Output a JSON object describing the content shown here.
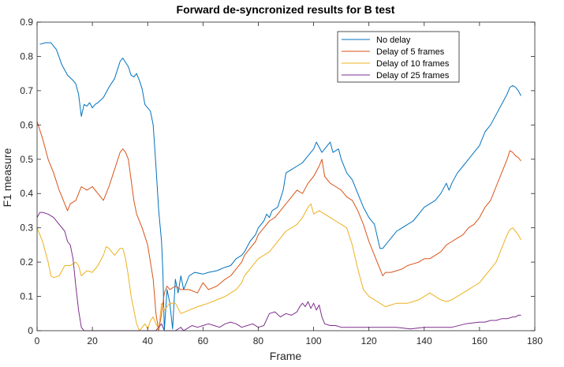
{
  "chart_data": {
    "type": "line",
    "title": "Forward de-syncronized results for B test",
    "xlabel": "Frame",
    "ylabel": "F1 measure",
    "xlim": [
      0,
      180
    ],
    "ylim": [
      0,
      0.9
    ],
    "xticks": [
      0,
      20,
      40,
      60,
      80,
      100,
      120,
      140,
      160,
      180
    ],
    "yticks": [
      0,
      0.1,
      0.2,
      0.3,
      0.4,
      0.5,
      0.6,
      0.7,
      0.8,
      0.9
    ],
    "xtick_labels": [
      "0",
      "20",
      "40",
      "60",
      "80",
      "100",
      "120",
      "140",
      "160",
      "180"
    ],
    "ytick_labels": [
      "0",
      "0.1",
      "0.2",
      "0.3",
      "0.4",
      "0.5",
      "0.6",
      "0.7",
      "0.8",
      "0.9"
    ],
    "grid": false,
    "legend_position": "top-right",
    "series": [
      {
        "name": "No delay",
        "color": "#0072BD",
        "x": [
          1,
          3,
          5,
          7,
          9,
          11,
          13,
          14,
          15,
          16,
          17,
          18,
          19,
          20,
          21,
          22,
          24,
          26,
          28,
          30,
          31,
          33,
          34,
          35,
          36,
          37,
          38,
          39,
          40,
          41,
          42,
          43,
          44,
          45,
          45.5,
          46,
          47,
          48,
          49,
          50,
          51,
          52,
          53,
          55,
          57,
          60,
          62,
          65,
          68,
          70,
          72,
          74,
          75,
          77,
          79,
          80,
          82,
          83,
          84,
          85,
          87,
          89,
          90,
          92,
          94,
          96,
          98,
          100,
          101,
          103,
          104,
          106,
          107,
          109,
          110,
          112,
          114,
          116,
          118,
          120,
          122,
          124,
          125,
          126,
          127,
          128,
          129,
          130,
          132,
          134,
          136,
          138,
          140,
          142,
          144,
          146,
          148,
          149,
          150,
          152,
          154,
          156,
          158,
          160,
          162,
          164,
          166,
          168,
          170,
          171,
          172,
          173,
          174,
          175
        ],
        "y": [
          0.835,
          0.84,
          0.84,
          0.82,
          0.775,
          0.745,
          0.73,
          0.72,
          0.69,
          0.625,
          0.66,
          0.655,
          0.665,
          0.65,
          0.66,
          0.665,
          0.68,
          0.71,
          0.735,
          0.785,
          0.795,
          0.77,
          0.745,
          0.74,
          0.75,
          0.73,
          0.705,
          0.66,
          0.65,
          0.64,
          0.6,
          0.48,
          0.35,
          0.26,
          0.17,
          0.0,
          0.12,
          0.08,
          0.005,
          0.15,
          0.11,
          0.16,
          0.12,
          0.16,
          0.17,
          0.165,
          0.17,
          0.175,
          0.185,
          0.19,
          0.21,
          0.22,
          0.23,
          0.26,
          0.28,
          0.3,
          0.32,
          0.34,
          0.33,
          0.35,
          0.36,
          0.41,
          0.46,
          0.47,
          0.48,
          0.49,
          0.51,
          0.53,
          0.55,
          0.52,
          0.53,
          0.55,
          0.52,
          0.53,
          0.5,
          0.46,
          0.44,
          0.4,
          0.36,
          0.33,
          0.31,
          0.24,
          0.24,
          0.25,
          0.26,
          0.27,
          0.28,
          0.29,
          0.3,
          0.31,
          0.32,
          0.34,
          0.36,
          0.37,
          0.38,
          0.4,
          0.43,
          0.41,
          0.43,
          0.46,
          0.48,
          0.5,
          0.52,
          0.54,
          0.58,
          0.6,
          0.63,
          0.66,
          0.69,
          0.71,
          0.715,
          0.71,
          0.7,
          0.685
        ]
      },
      {
        "name": "Delay of 5 frames",
        "color": "#D95319",
        "x": [
          0,
          2,
          4,
          6,
          8,
          10,
          11,
          12,
          14,
          15,
          16,
          18,
          20,
          22,
          24,
          26,
          28,
          30,
          31,
          32,
          33,
          34,
          35,
          36,
          38,
          40,
          42,
          43,
          44,
          45,
          46,
          47,
          48,
          50,
          52,
          55,
          58,
          60,
          62,
          65,
          68,
          70,
          72,
          74,
          75,
          77,
          79,
          80,
          82,
          84,
          86,
          88,
          90,
          92,
          94,
          96,
          98,
          100,
          102,
          103,
          104,
          106,
          108,
          110,
          112,
          114,
          116,
          118,
          120,
          122,
          124,
          125,
          126,
          128,
          130,
          132,
          134,
          136,
          138,
          140,
          142,
          144,
          146,
          148,
          150,
          152,
          154,
          156,
          158,
          160,
          162,
          164,
          166,
          168,
          170,
          171,
          172,
          173,
          174,
          175
        ],
        "y": [
          0.61,
          0.56,
          0.5,
          0.46,
          0.41,
          0.37,
          0.35,
          0.37,
          0.38,
          0.4,
          0.42,
          0.41,
          0.42,
          0.4,
          0.38,
          0.42,
          0.47,
          0.52,
          0.53,
          0.52,
          0.5,
          0.44,
          0.38,
          0.34,
          0.3,
          0.25,
          0.15,
          0.05,
          0.0,
          0.05,
          0.11,
          0.13,
          0.12,
          0.13,
          0.12,
          0.12,
          0.11,
          0.14,
          0.12,
          0.13,
          0.15,
          0.16,
          0.18,
          0.2,
          0.22,
          0.24,
          0.26,
          0.28,
          0.3,
          0.32,
          0.33,
          0.35,
          0.37,
          0.39,
          0.41,
          0.4,
          0.43,
          0.45,
          0.48,
          0.5,
          0.45,
          0.43,
          0.42,
          0.41,
          0.39,
          0.38,
          0.35,
          0.31,
          0.26,
          0.22,
          0.18,
          0.16,
          0.17,
          0.17,
          0.175,
          0.18,
          0.19,
          0.195,
          0.2,
          0.21,
          0.21,
          0.22,
          0.23,
          0.25,
          0.26,
          0.27,
          0.28,
          0.3,
          0.31,
          0.33,
          0.36,
          0.38,
          0.42,
          0.46,
          0.5,
          0.525,
          0.52,
          0.51,
          0.505,
          0.495
        ]
      },
      {
        "name": "Delay of 10 frames",
        "color": "#EDB120",
        "x": [
          0,
          2,
          4,
          5,
          6,
          8,
          10,
          12,
          14,
          15,
          16,
          18,
          20,
          22,
          24,
          25,
          26,
          28,
          30,
          31,
          32,
          33,
          34,
          35,
          36,
          37,
          38,
          39,
          40,
          41,
          42,
          43,
          44,
          45,
          46,
          48,
          50,
          52,
          55,
          58,
          60,
          62,
          65,
          68,
          70,
          72,
          74,
          75,
          77,
          79,
          80,
          82,
          84,
          86,
          88,
          90,
          92,
          94,
          96,
          98,
          99,
          100,
          102,
          104,
          106,
          108,
          110,
          112,
          114,
          116,
          118,
          120,
          122,
          124,
          126,
          128,
          130,
          132,
          134,
          136,
          138,
          140,
          142,
          144,
          146,
          148,
          150,
          152,
          154,
          156,
          158,
          160,
          162,
          164,
          166,
          168,
          170,
          171,
          172,
          173,
          174,
          175
        ],
        "y": [
          0.3,
          0.26,
          0.2,
          0.16,
          0.155,
          0.16,
          0.19,
          0.19,
          0.2,
          0.19,
          0.16,
          0.175,
          0.17,
          0.19,
          0.22,
          0.245,
          0.24,
          0.22,
          0.24,
          0.24,
          0.21,
          0.16,
          0.1,
          0.06,
          0.02,
          0.0,
          0.01,
          0.02,
          0.005,
          0.03,
          0.04,
          0.02,
          0.005,
          0.08,
          0.06,
          0.08,
          0.08,
          0.05,
          0.06,
          0.07,
          0.075,
          0.08,
          0.09,
          0.1,
          0.11,
          0.12,
          0.14,
          0.16,
          0.18,
          0.2,
          0.21,
          0.22,
          0.23,
          0.25,
          0.27,
          0.29,
          0.3,
          0.31,
          0.33,
          0.36,
          0.37,
          0.34,
          0.35,
          0.34,
          0.33,
          0.32,
          0.31,
          0.3,
          0.25,
          0.18,
          0.12,
          0.1,
          0.09,
          0.08,
          0.07,
          0.075,
          0.08,
          0.08,
          0.08,
          0.085,
          0.09,
          0.1,
          0.11,
          0.1,
          0.09,
          0.085,
          0.09,
          0.1,
          0.11,
          0.12,
          0.13,
          0.14,
          0.16,
          0.18,
          0.2,
          0.24,
          0.28,
          0.295,
          0.3,
          0.29,
          0.28,
          0.265
        ]
      },
      {
        "name": "Delay of 25 frames",
        "color": "#7E2F8E",
        "x": [
          0,
          1,
          2,
          4,
          6,
          8,
          10,
          11,
          12,
          13,
          14,
          15,
          16,
          17,
          18,
          20,
          25,
          30,
          35,
          40,
          43,
          44,
          45,
          46,
          47,
          48,
          50,
          52,
          53,
          54,
          55,
          56,
          58,
          60,
          62,
          64,
          66,
          68,
          70,
          72,
          74,
          76,
          78,
          80,
          82,
          84,
          86,
          88,
          90,
          92,
          94,
          95,
          96,
          97,
          98,
          99,
          100,
          101,
          102,
          103,
          104,
          106,
          108,
          110,
          115,
          120,
          125,
          130,
          135,
          140,
          145,
          150,
          155,
          160,
          162,
          164,
          166,
          168,
          170,
          172,
          173,
          174,
          175
        ],
        "y": [
          0.33,
          0.345,
          0.345,
          0.34,
          0.33,
          0.31,
          0.29,
          0.26,
          0.25,
          0.21,
          0.13,
          0.06,
          0.01,
          0.0,
          0.0,
          0.0,
          0.0,
          0.0,
          0.0,
          0.0,
          0.0,
          0.01,
          0.02,
          0.0,
          0.0,
          0.0,
          0.0,
          0.01,
          0.0,
          0.005,
          0.01,
          0.015,
          0.01,
          0.015,
          0.02,
          0.015,
          0.01,
          0.02,
          0.025,
          0.02,
          0.01,
          0.015,
          0.02,
          0.01,
          0.015,
          0.05,
          0.055,
          0.04,
          0.05,
          0.045,
          0.055,
          0.07,
          0.08,
          0.07,
          0.085,
          0.065,
          0.08,
          0.06,
          0.075,
          0.04,
          0.02,
          0.015,
          0.015,
          0.01,
          0.01,
          0.01,
          0.01,
          0.01,
          0.005,
          0.01,
          0.01,
          0.01,
          0.02,
          0.025,
          0.025,
          0.03,
          0.03,
          0.035,
          0.035,
          0.04,
          0.04,
          0.045,
          0.045
        ]
      }
    ]
  }
}
